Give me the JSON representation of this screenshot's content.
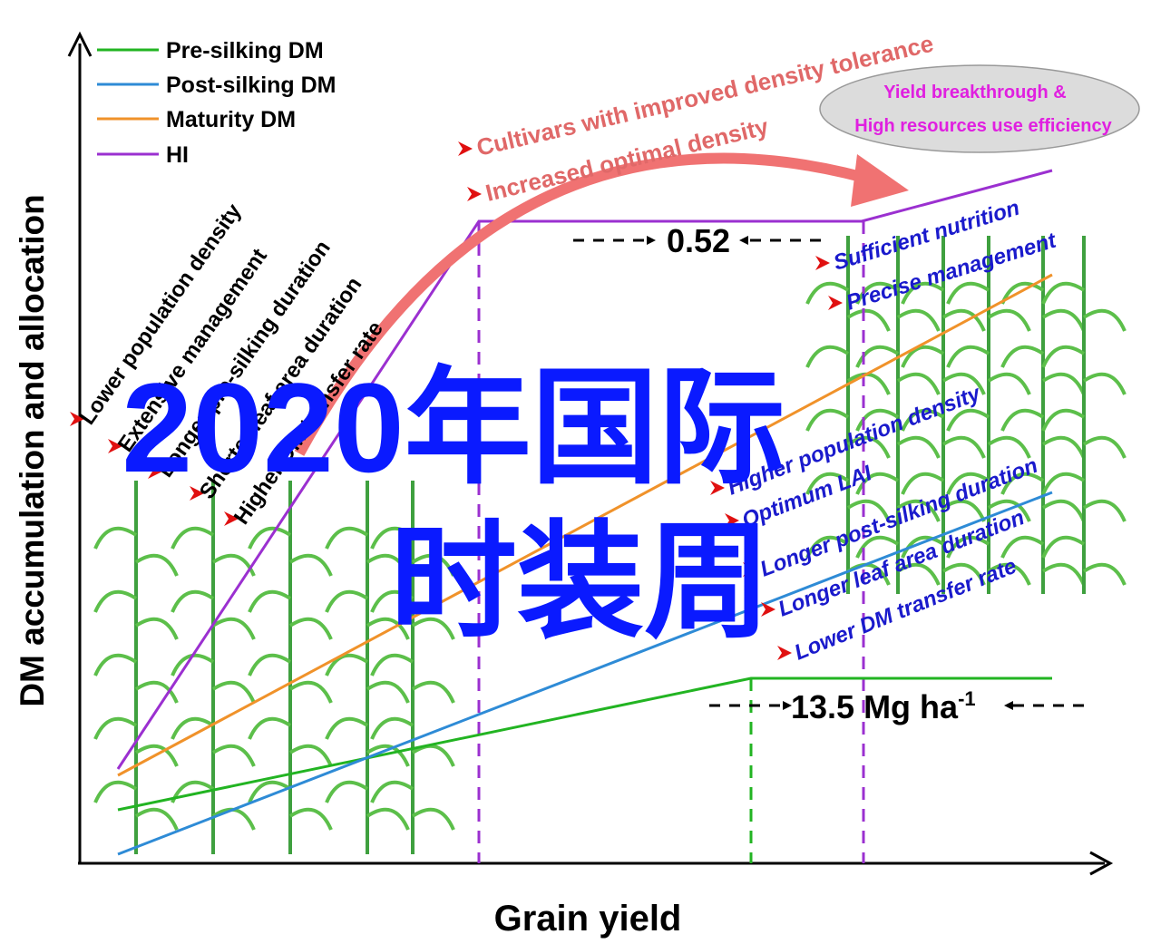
{
  "legend": [
    "Pre-silking DM",
    "Post-silking DM",
    "Maturity DM",
    "HI"
  ],
  "ellipse": [
    "Yield breakthrough &",
    "High resources use efficiency"
  ],
  "curve_labels": [
    "Cultivars with improved density tolerance",
    "Increased optimal density"
  ],
  "left_notes": [
    "Lower population density",
    "Extensive management",
    "Longer pre-silking duration",
    "Shorter leaf area duration",
    "Higher DM transfer rate"
  ],
  "right_notes": [
    "Sufficient nutrition",
    "Precise management",
    "Higher population density",
    "Optimum LAI",
    "Longer  post-silking duration",
    "Longer leaf area duration",
    "Lower DM transfer rate"
  ],
  "hi_gap": "0.52",
  "yield_gap": {
    "text": "13.5 Mg ha",
    "superscript": "-1"
  },
  "x_axis_label": "Grain yield",
  "y_axis_label": "DM accumulation and allocation",
  "watermark": [
    "2020年国际",
    "时装周"
  ]
}
